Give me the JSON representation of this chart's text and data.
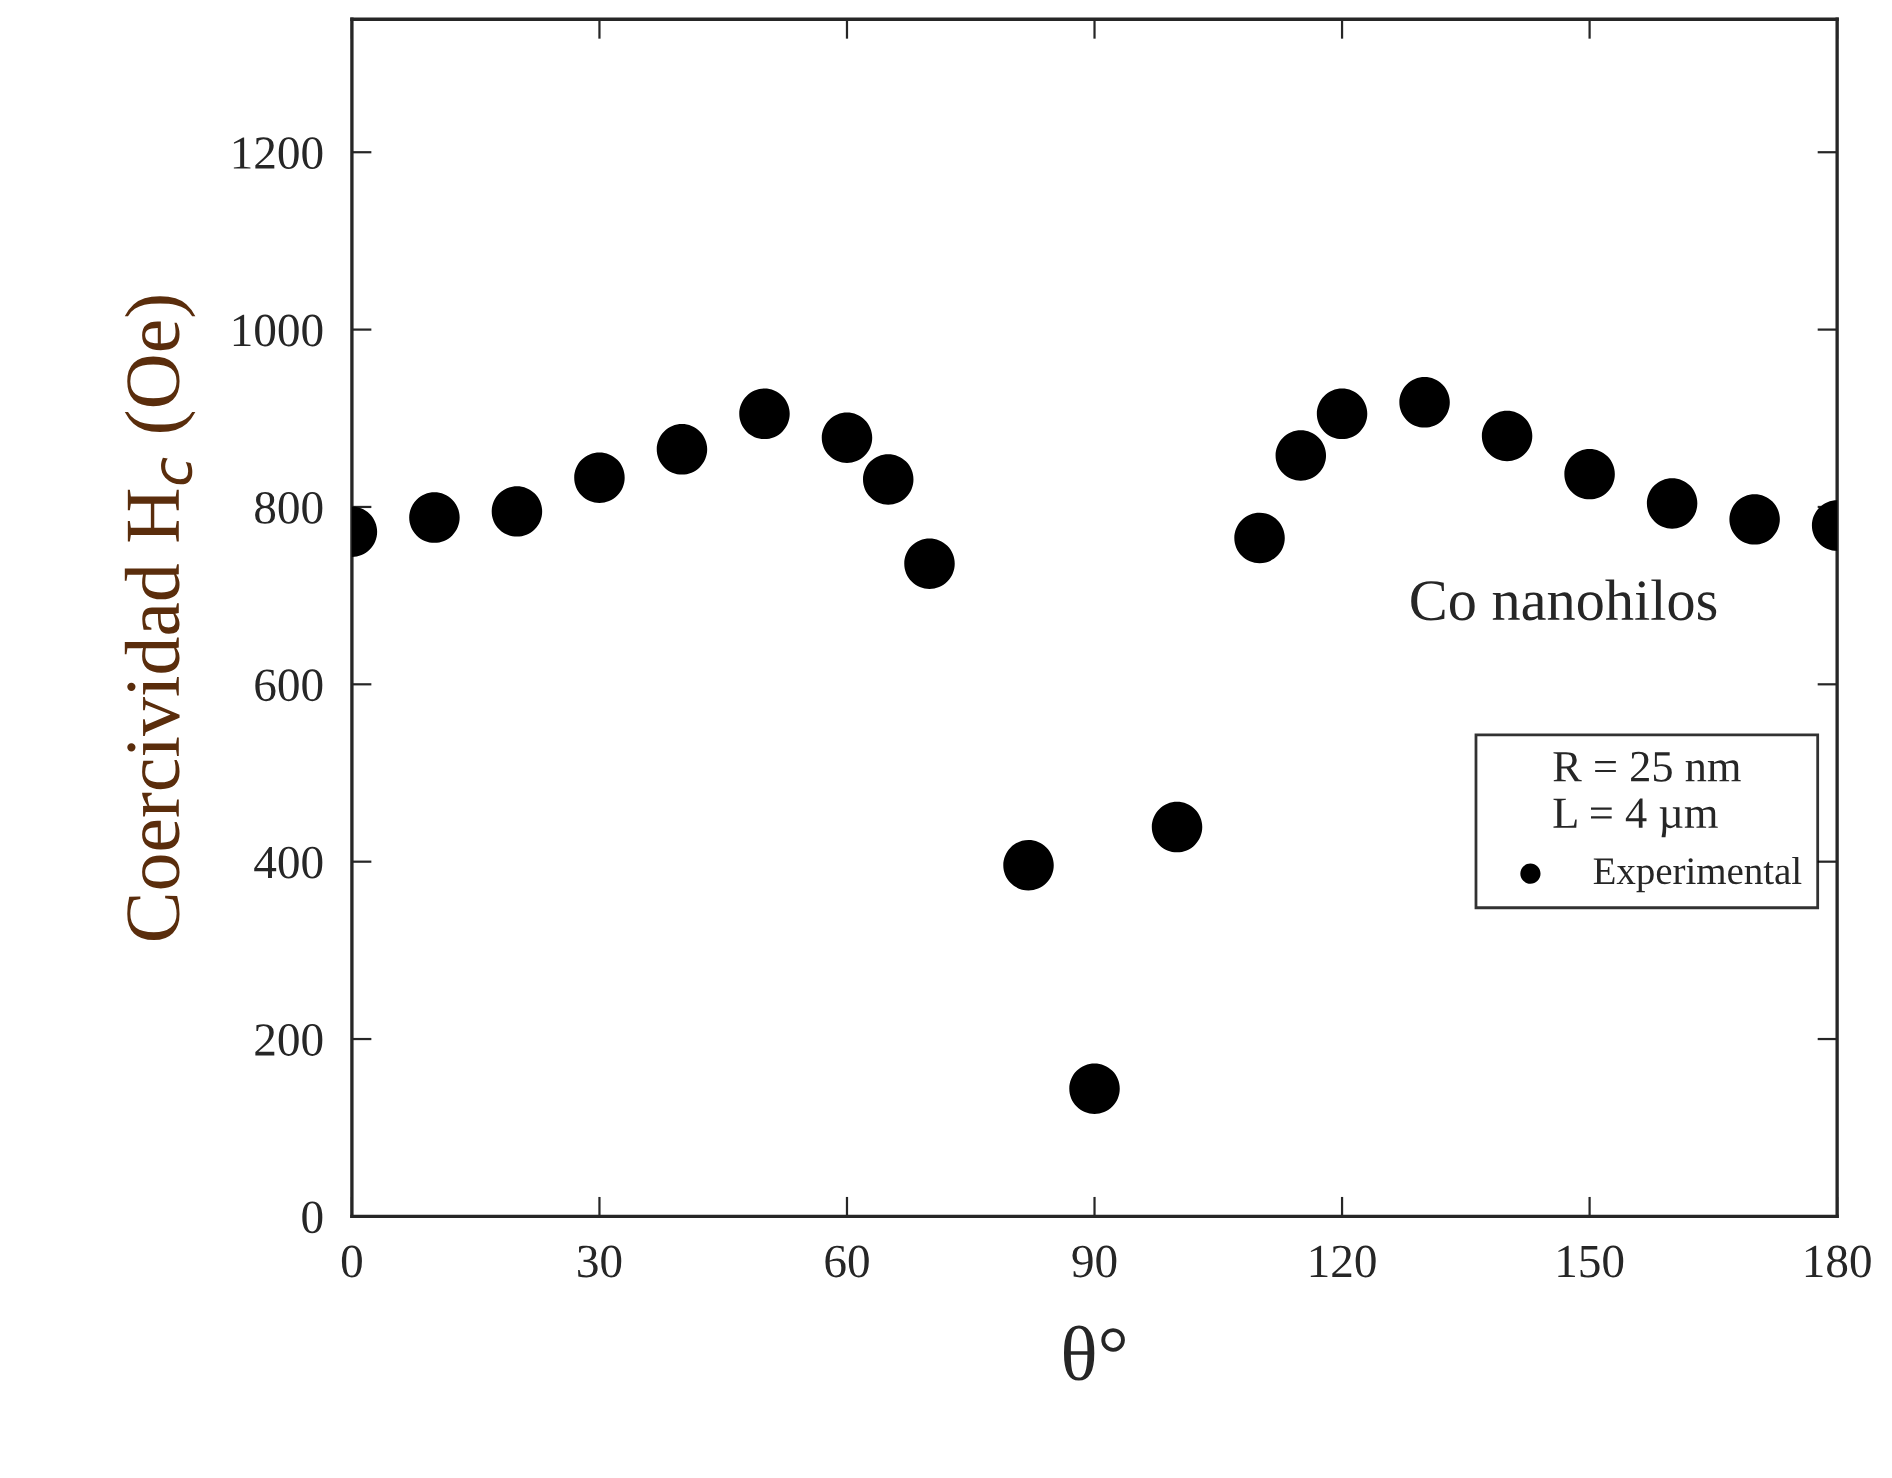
{
  "chart_data": {
    "type": "scatter",
    "xlabel": "θ°",
    "ylabel": "Coercividad H$_{c}$ (Oe)",
    "x": [
      0,
      10,
      20,
      30,
      40,
      50,
      60,
      65,
      70,
      82,
      90,
      100,
      110,
      115,
      120,
      130,
      140,
      150,
      160,
      170,
      180
    ],
    "series": [
      {
        "name": "Experimental",
        "color": "#000000",
        "values": [
          772,
          788,
          795,
          833,
          865,
          905,
          878,
          831,
          736,
          396,
          144,
          439,
          765,
          858,
          905,
          918,
          880,
          837,
          804,
          786,
          779
        ]
      }
    ],
    "marker": "circle",
    "legend": "right",
    "legend_title": "R = 25 nm\nL = 4 µm",
    "annotations": [
      "Co nanohilos"
    ],
    "xlim": [
      0,
      180
    ],
    "xticks": [
      0,
      30,
      60,
      90,
      120,
      150,
      180
    ],
    "ylim": [
      0,
      1350
    ],
    "yticks": [
      0,
      200,
      400,
      600,
      800,
      1000,
      1200
    ],
    "grid": false
  }
}
